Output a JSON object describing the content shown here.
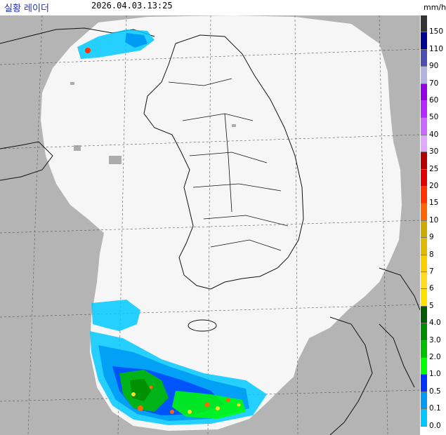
{
  "header": {
    "title": "실황 레이더",
    "timestamp": "2026.04.03.13:25",
    "unit": "mm/h"
  },
  "legend": {
    "items": [
      {
        "label": "150",
        "color": "#333333"
      },
      {
        "label": "110",
        "color": "#000390"
      },
      {
        "label": "90",
        "color": "#4c4eb1"
      },
      {
        "label": "70",
        "color": "#b3b4de"
      },
      {
        "label": "60",
        "color": "#9300e4"
      },
      {
        "label": "50",
        "color": "#b329ff"
      },
      {
        "label": "40",
        "color": "#c969ff"
      },
      {
        "label": "30",
        "color": "#e0a9ff"
      },
      {
        "label": "25",
        "color": "#b40000"
      },
      {
        "label": "20",
        "color": "#e00000"
      },
      {
        "label": "15",
        "color": "#ff3200"
      },
      {
        "label": "10",
        "color": "#ff6600"
      },
      {
        "label": "9",
        "color": "#ccaa00"
      },
      {
        "label": "8",
        "color": "#e0b900"
      },
      {
        "label": "7",
        "color": "#f9cd00"
      },
      {
        "label": "6",
        "color": "#ffdc1f"
      },
      {
        "label": "5",
        "color": "#ffe100"
      },
      {
        "label": "4.0",
        "color": "#005a00"
      },
      {
        "label": "3.0",
        "color": "#008c00"
      },
      {
        "label": "2.0",
        "color": "#00be00"
      },
      {
        "label": "1.0",
        "color": "#00ff00"
      },
      {
        "label": "0.5",
        "color": "#0033ff"
      },
      {
        "label": "0.1",
        "color": "#009bf5"
      },
      {
        "label": "0.0",
        "color": "#00c8ff"
      }
    ]
  }
}
